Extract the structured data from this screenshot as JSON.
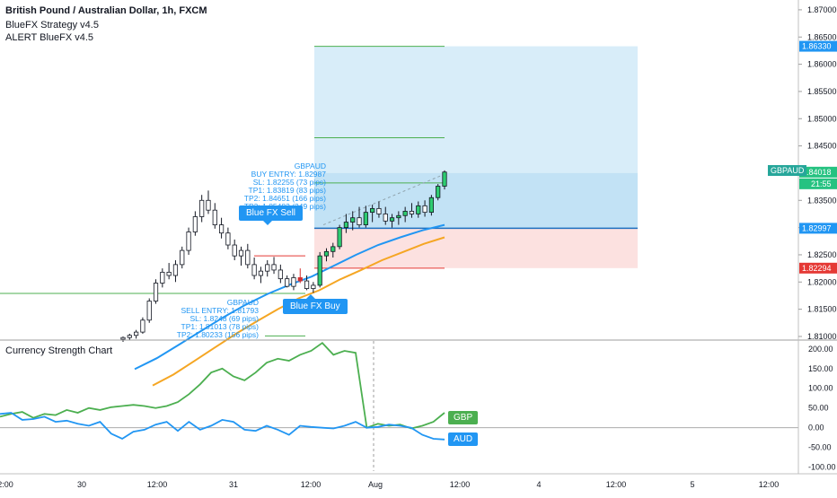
{
  "legend": {
    "symbol_line": "British Pound / Australian Dollar, 1h, FXCM",
    "strategy": "BlueFX Strategy v4.5",
    "alert": "ALERT BlueFX v4.5"
  },
  "panel_title": "Currency Strength Chart",
  "annotations": {
    "buy_block": [
      "GBPAUD",
      "BUY ENTRY: 1.82987",
      "SL: 1.82255 (73 pips)",
      "TP1: 1.83819 (83 pips)",
      "TP2: 1.84651 (166 pips)",
      "TP3: 1.85483 (249 pips)"
    ],
    "sell_block": [
      "GBPAUD",
      "SELL ENTRY: 1.81793",
      "SL: 1.8248 (69 pips)",
      "TP1: 1.81013 (78 pips)",
      "TP2: 1.80233 (156 pips)"
    ],
    "sell_signal": "Blue FX Sell",
    "buy_signal": "Blue FX Buy"
  },
  "price_axis": {
    "ticks": [
      "1.87000",
      "1.86500",
      "1.86000",
      "1.85500",
      "1.85000",
      "1.84500",
      "1.84000",
      "1.83500",
      "1.83000",
      "1.82500",
      "1.82000",
      "1.81500",
      "1.81000"
    ],
    "tp_tag": "1.86330",
    "entry_tag": "1.82997",
    "sl_tag": "1.82294",
    "pair_label": "GBPAUD",
    "last_price": "1.84018",
    "countdown": "21:55"
  },
  "strength_axis": {
    "ticks": [
      "200.00",
      "150.00",
      "100.00",
      "50.00",
      "0.00",
      "-50.00",
      "-100.00"
    ]
  },
  "time_axis": {
    "ticks": [
      "2:00",
      "30",
      "12:00",
      "31",
      "12:00",
      "Aug",
      "12:00",
      "4",
      "12:00",
      "5",
      "12:00"
    ]
  },
  "strength_tags": {
    "gbp": "GBP",
    "aud": "AUD"
  },
  "colors": {
    "up": "#26a69a",
    "down": "#ef5350",
    "blue": "#2196f3",
    "orange": "#f5a623",
    "green_line": "#4caf50",
    "tp_zone": "#c8e6f7",
    "sl_zone": "#fbdad8"
  },
  "chart_data": {
    "type": "candlestick",
    "title": "British Pound / Australian Dollar, 1h, FXCM",
    "ylim": [
      1.8095,
      1.8718
    ],
    "candles": [
      [
        1.8095,
        1.81,
        1.809,
        1.8098
      ],
      [
        1.8098,
        1.8105,
        1.8094,
        1.8102
      ],
      [
        1.8102,
        1.8112,
        1.8096,
        1.8108
      ],
      [
        1.8108,
        1.8135,
        1.8105,
        1.813
      ],
      [
        1.813,
        1.817,
        1.8125,
        1.8165
      ],
      [
        1.8165,
        1.8205,
        1.816,
        1.8198
      ],
      [
        1.8198,
        1.8225,
        1.819,
        1.8218
      ],
      [
        1.8218,
        1.8235,
        1.8205,
        1.8212
      ],
      [
        1.8212,
        1.824,
        1.82,
        1.8232
      ],
      [
        1.8232,
        1.8265,
        1.8225,
        1.8258
      ],
      [
        1.8258,
        1.83,
        1.825,
        1.8292
      ],
      [
        1.8292,
        1.833,
        1.8285,
        1.832
      ],
      [
        1.832,
        1.836,
        1.831,
        1.835
      ],
      [
        1.835,
        1.8368,
        1.8325,
        1.8332
      ],
      [
        1.8332,
        1.8345,
        1.8298,
        1.8305
      ],
      [
        1.8305,
        1.8318,
        1.828,
        1.829
      ],
      [
        1.829,
        1.83,
        1.826,
        1.8268
      ],
      [
        1.8268,
        1.8278,
        1.824,
        1.8248
      ],
      [
        1.8248,
        1.8265,
        1.823,
        1.8258
      ],
      [
        1.8258,
        1.827,
        1.8225,
        1.8232
      ],
      [
        1.8232,
        1.8245,
        1.8205,
        1.8212
      ],
      [
        1.8212,
        1.8228,
        1.8198,
        1.822
      ],
      [
        1.822,
        1.824,
        1.821,
        1.8232
      ],
      [
        1.8232,
        1.8246,
        1.8215,
        1.8222
      ],
      [
        1.8222,
        1.8232,
        1.8198,
        1.8206
      ],
      [
        1.8206,
        1.8212,
        1.819,
        1.8192
      ],
      [
        1.8192,
        1.8215,
        1.8185,
        1.8208
      ],
      [
        1.8208,
        1.8225,
        1.8198,
        1.8202
      ],
      [
        1.8202,
        1.8212,
        1.8185,
        1.8188
      ],
      [
        1.8188,
        1.82,
        1.818,
        1.8194
      ],
      [
        1.8194,
        1.8255,
        1.819,
        1.8248
      ],
      [
        1.8248,
        1.8262,
        1.8238,
        1.8256
      ],
      [
        1.8256,
        1.8272,
        1.8245,
        1.8265
      ],
      [
        1.8265,
        1.8305,
        1.826,
        1.83
      ],
      [
        1.83,
        1.8325,
        1.829,
        1.831
      ],
      [
        1.831,
        1.833,
        1.8295,
        1.8318
      ],
      [
        1.8318,
        1.8338,
        1.83,
        1.8305
      ],
      [
        1.8305,
        1.834,
        1.83,
        1.8328
      ],
      [
        1.8328,
        1.8342,
        1.831,
        1.8335
      ],
      [
        1.8335,
        1.8348,
        1.8318,
        1.8325
      ],
      [
        1.8325,
        1.8338,
        1.8305,
        1.8312
      ],
      [
        1.8312,
        1.8325,
        1.83,
        1.8318
      ],
      [
        1.8318,
        1.833,
        1.8305,
        1.8322
      ],
      [
        1.8322,
        1.8338,
        1.831,
        1.833
      ],
      [
        1.833,
        1.8345,
        1.8318,
        1.8325
      ],
      [
        1.8325,
        1.8348,
        1.8318,
        1.834
      ],
      [
        1.834,
        1.835,
        1.832,
        1.8328
      ],
      [
        1.8328,
        1.836,
        1.8322,
        1.8355
      ],
      [
        1.8355,
        1.838,
        1.835,
        1.8376
      ],
      [
        1.8376,
        1.8405,
        1.837,
        1.8402
      ]
    ],
    "sma_fast": [
      1.804,
      1.806,
      1.8085,
      1.811,
      1.8135,
      1.8158,
      1.8178,
      1.8195,
      1.821,
      1.823,
      1.825,
      1.8268,
      1.8282,
      1.8295,
      1.8305
    ],
    "sma_slow": [
      1.801,
      1.803,
      1.8055,
      1.808,
      1.8105,
      1.8128,
      1.815,
      1.817,
      1.8185,
      1.8205,
      1.8222,
      1.824,
      1.8255,
      1.827,
      1.8282
    ],
    "levels": {
      "buy_entry": 1.82987,
      "sl": 1.82255,
      "tp1": 1.83819,
      "tp2": 1.84651,
      "tp3": 1.85483,
      "tp_zone_top": 1.8633
    },
    "currency_strength": {
      "ylim": [
        -110,
        220
      ],
      "series": [
        {
          "name": "GBP",
          "values": [
            28,
            35,
            40,
            25,
            35,
            32,
            45,
            38,
            50,
            45,
            52,
            55,
            58,
            55,
            50,
            55,
            65,
            85,
            110,
            140,
            150,
            130,
            120,
            140,
            165,
            175,
            170,
            185,
            195,
            215,
            185,
            195,
            190,
            0,
            10,
            5,
            8,
            -2,
            5,
            15,
            38
          ]
        },
        {
          "name": "AUD",
          "values": [
            35,
            38,
            20,
            22,
            28,
            15,
            18,
            10,
            5,
            15,
            -15,
            -28,
            -10,
            -5,
            8,
            15,
            -8,
            15,
            -5,
            5,
            20,
            15,
            -5,
            -8,
            5,
            -5,
            -18,
            5,
            2,
            0,
            -2,
            5,
            15,
            0,
            2,
            8,
            5,
            0,
            -18,
            -28,
            -30
          ]
        }
      ]
    }
  }
}
